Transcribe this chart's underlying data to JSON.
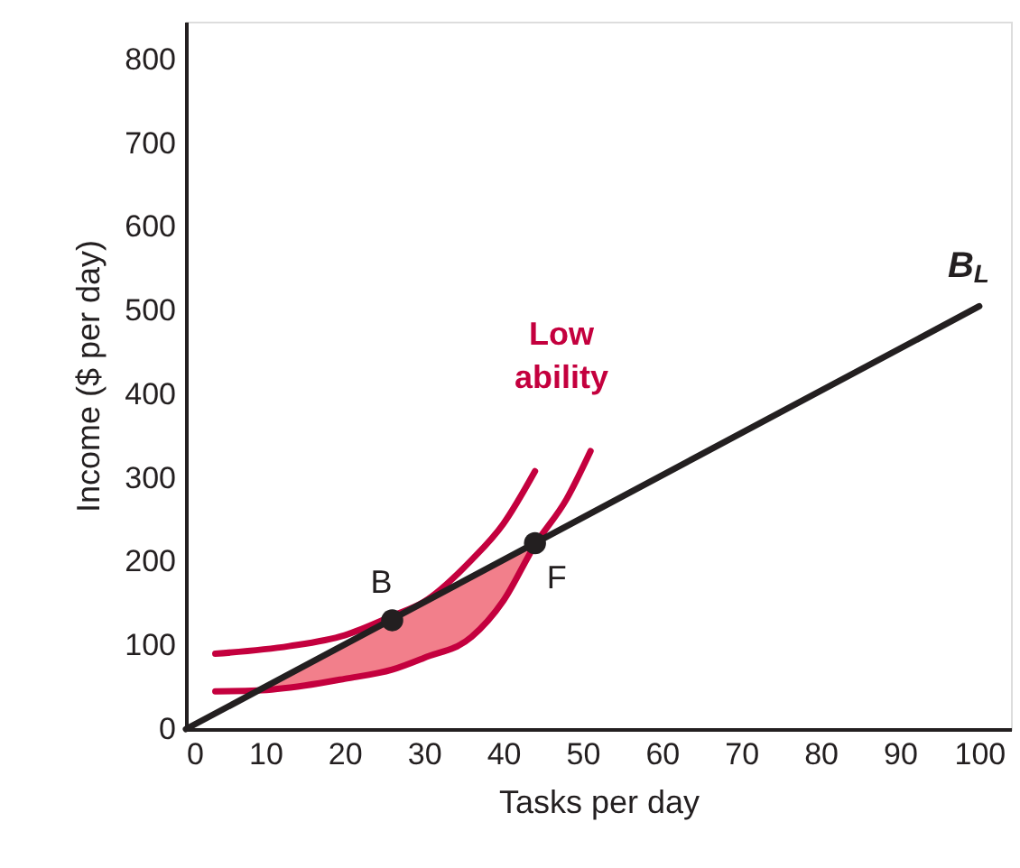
{
  "chart_data": {
    "type": "line",
    "xlabel": "Tasks per day",
    "ylabel": "Income ($ per day)",
    "xlim": [
      0,
      104
    ],
    "ylim": [
      0,
      845
    ],
    "xticks": [
      0,
      10,
      20,
      30,
      40,
      50,
      60,
      70,
      80,
      90,
      100
    ],
    "yticks": [
      0,
      100,
      200,
      300,
      400,
      500,
      600,
      700,
      800
    ],
    "grid": false,
    "marker": "none",
    "line_style": "solid",
    "series": [
      {
        "color": "#c4003e",
        "x": [
          3.7,
          13,
          20,
          26,
          30,
          36,
          40,
          44
        ],
        "values": [
          90,
          99,
          112,
          135,
          152,
          202,
          245,
          308
        ]
      },
      {
        "color": "#c4003e",
        "x": [
          3.7,
          9,
          15,
          20,
          26,
          30,
          36,
          40,
          44,
          48,
          51
        ],
        "values": [
          45,
          46,
          52,
          60,
          71,
          85,
          110,
          153,
          220,
          275,
          332
        ],
        "lower": [
          null,
          46,
          52,
          60,
          71,
          85,
          110,
          153,
          220,
          null,
          null
        ],
        "upper": [
          null,
          45,
          75,
          100,
          130,
          150,
          180,
          200,
          220,
          null,
          null
        ]
      },
      {
        "name": "B$_{L}$",
        "color": "#231f20",
        "x": [
          0,
          100
        ],
        "values": [
          0,
          505
        ]
      },
      {
        "type": "scatter",
        "marker": "circle",
        "color": "#231f20",
        "x": [
          26,
          44
        ],
        "values": [
          130,
          222
        ]
      }
    ],
    "annotations": [
      {
        "text": "B",
        "x": 26,
        "y": 130
      },
      {
        "text": "F",
        "x": 44,
        "y": 222
      },
      "Low ability"
    ]
  }
}
